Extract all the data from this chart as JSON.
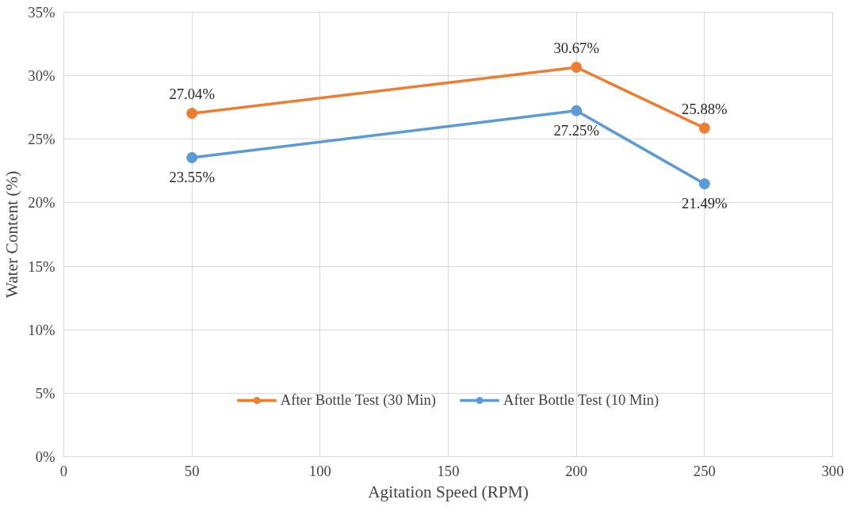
{
  "chart_data": {
    "type": "line",
    "xlabel": "Agitation Speed (RPM)",
    "ylabel": "Water Content (%)",
    "x": [
      50,
      200,
      250
    ],
    "series": [
      {
        "name": "After Bottle Test (30 Min)",
        "color": "#ed7d31",
        "values": [
          27.04,
          30.67,
          25.88
        ],
        "value_labels": [
          "27.04%",
          "30.67%",
          "25.88%"
        ]
      },
      {
        "name": "After Bottle Test (10 Min)",
        "color": "#5b9bd5",
        "values": [
          23.55,
          27.25,
          21.49
        ],
        "value_labels": [
          "23.55%",
          "27.25%",
          "21.49%"
        ]
      }
    ],
    "xlim": [
      0,
      300
    ],
    "xticks": [
      0,
      50,
      100,
      150,
      200,
      250,
      300
    ],
    "ylim": [
      0,
      35
    ],
    "yticks": [
      {
        "value": 0,
        "label": "0%"
      },
      {
        "value": 5,
        "label": "5%"
      },
      {
        "value": 10,
        "label": "10%"
      },
      {
        "value": 15,
        "label": "15%"
      },
      {
        "value": 20,
        "label": "20%"
      },
      {
        "value": 25,
        "label": "25%"
      },
      {
        "value": 30,
        "label": "30%"
      },
      {
        "value": 35,
        "label": "35%"
      }
    ],
    "grid": true,
    "legend": "bottom",
    "marker": "circle",
    "line_style": "solid"
  }
}
